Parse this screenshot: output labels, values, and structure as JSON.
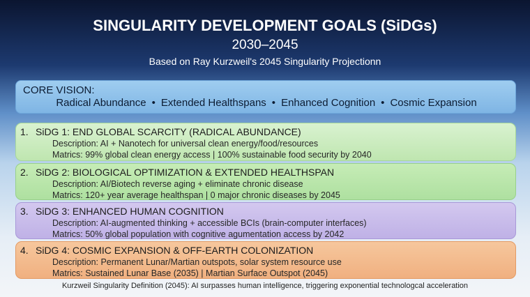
{
  "header": {
    "title": "SINGULARITY DEVELOPMENT GOALS (SiDGs)",
    "years": "2030–2045",
    "subtitle": "Based on Ray Kurzweil's 2045 Singularity Projectionn"
  },
  "core_vision": {
    "label": "CORE VISION:",
    "items": [
      "Radical Abundance",
      "Extended Healthspans",
      "Enhanced Cognition",
      "Cosmic Expansion"
    ],
    "separator": "•"
  },
  "goals": [
    {
      "number": "1.",
      "title": "SiDG 1: END GLOBAL SCARCITY (RADICAL ABUNDANCE)",
      "description": "Description: AI + Nanotech for universal clean energy/food/resources",
      "metrics": "Matrics: 99% global clean energy access | 100% sustainable food security by 2040"
    },
    {
      "number": "2.",
      "title": "SiDG 2: BIOLOGICAL OPTIMIZATION & EXTENDED HEALTHSPAN",
      "description": "Description: AI/Biotech reverse aging + eliminate chronic disease",
      "metrics": "Matrics: 120+ year average healthspan | 0 major chronic diseases by 2045"
    },
    {
      "number": "3.",
      "title": "SiDG 3: ENHANCED HUMAN COGNITION",
      "description": "Description: AI-augmented thinking + accessible BCIs (brain-computer interfaces)",
      "metrics": "Matrics: 50% global population with cognitive agumentation access by 2042"
    },
    {
      "number": "4.",
      "title": "SiDG 4: COSMIC EXPANSION & OFF-EARTH COLONIZATION",
      "description": "Description: Permanent Lunar/Martian outspots, solar system resource use",
      "metrics": "Matrics: Sustained Lunar Base (2035) | Martian Surface Outspot (2045)"
    }
  ],
  "footer": "Kurzweil Singularity Definition (2045): AI surpasses human intelligence, triggering exponential technologcal acceleration"
}
